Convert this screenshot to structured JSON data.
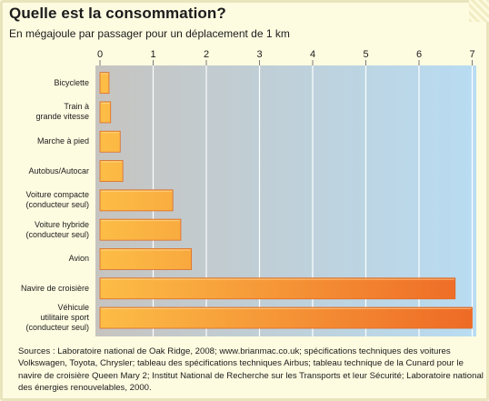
{
  "header": {
    "title": "Quelle est la consommation?",
    "subtitle": "En mégajoule par passager pour un déplacement de 1 km"
  },
  "chart_data": {
    "type": "bar",
    "orientation": "horizontal",
    "title": "Quelle est la consommation?",
    "subtitle": "En mégajoule par passager pour un déplacement de 1 km",
    "xlabel": "",
    "ylabel": "",
    "xlim": [
      0,
      7
    ],
    "xticks": [
      "0",
      "1",
      "2",
      "3",
      "4",
      "5",
      "6",
      "7"
    ],
    "categories": [
      [
        "Bicyclette"
      ],
      [
        "Train à",
        "grande vitesse"
      ],
      [
        "Marche à pied"
      ],
      [
        "Autobus/Autocar"
      ],
      [
        "Voiture compacte",
        "(conducteur seul)"
      ],
      [
        "Voiture hybride",
        "(conducteur seul)"
      ],
      [
        "Avion"
      ],
      [
        "Navire de croisière"
      ],
      [
        "Véhicule",
        "utilitaire sport",
        "(conducteur seul)"
      ]
    ],
    "values": [
      0.17,
      0.2,
      0.38,
      0.43,
      1.37,
      1.52,
      1.72,
      6.68,
      7.0
    ],
    "grid": true,
    "legend": "none",
    "colors": {
      "bar_start": "#fcbd46",
      "bar_end": "#ee6a26",
      "bar_edge": "#dd6a28",
      "plot_bg_left": "#c6c4c0",
      "plot_bg_right": "#b8dcf2",
      "gridline": "#ffffff"
    }
  },
  "footer": {
    "sources": "Sources : Laboratoire national de Oak Ridge, 2008; www.brianmac.co.uk; spécifications techniques des voitures Volkswagen, Toyota, Chrysler; tableau des spécifications techniques Airbus; tableau technique de la Cunard pour le navire de croisière Queen Mary 2; Institut National de Recherche sur les Transports et leur Sécurité; Laboratoire national des énergies renouvelables, 2000."
  }
}
